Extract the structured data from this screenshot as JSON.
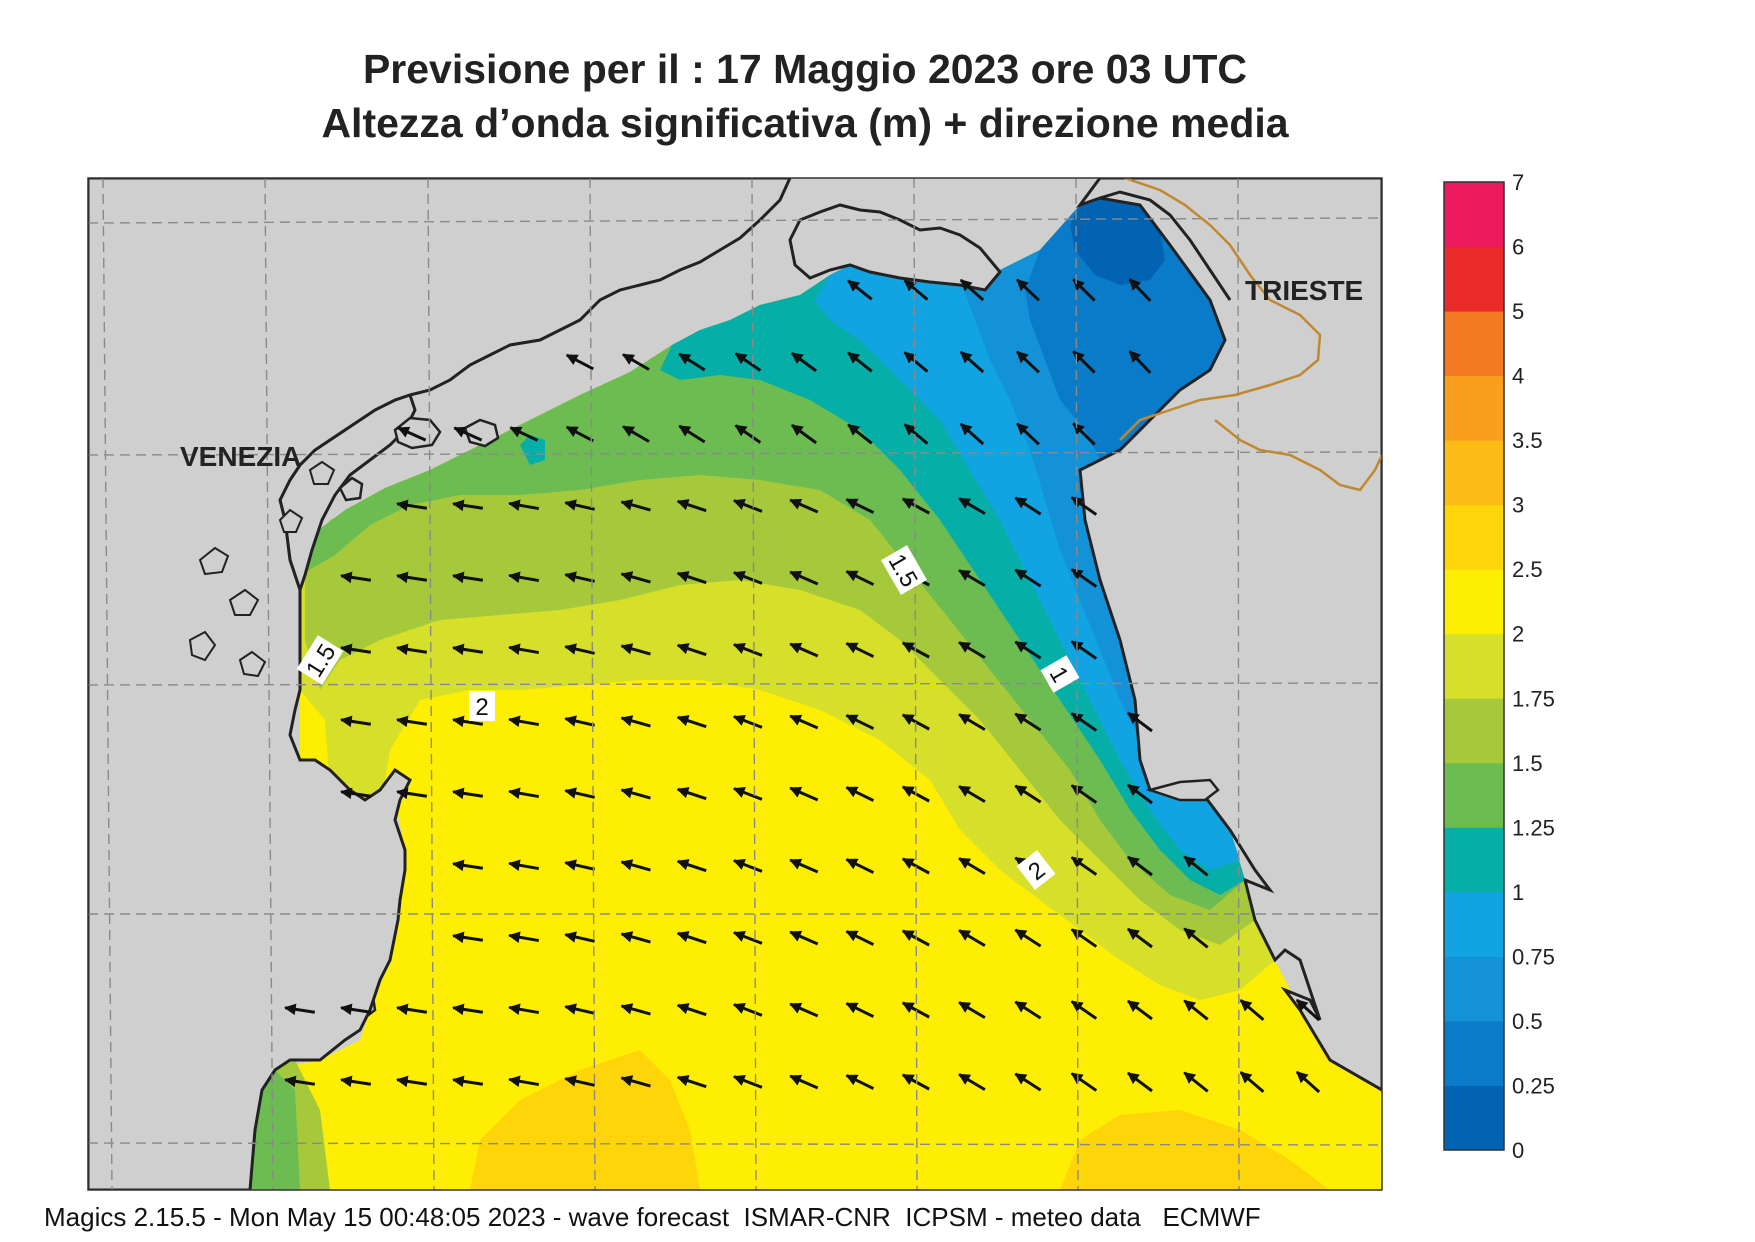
{
  "title": {
    "line1": "Previsione per il  :  17   Maggio  2023   ore 03 UTC",
    "line2": "Altezza d’onda significativa (m) + direzione media"
  },
  "places": [
    {
      "name": "VENEZIA"
    },
    {
      "name": "TRIESTE"
    }
  ],
  "contour_labels": [
    "1.5",
    "2",
    "1.5",
    "1",
    "2"
  ],
  "legend": {
    "levels": [
      "0",
      "0.25",
      "0.5",
      "0.75",
      "1",
      "1.25",
      "1.5",
      "1.75",
      "2",
      "2.5",
      "3",
      "3.5",
      "4",
      "5",
      "6",
      "7"
    ],
    "colors": [
      "#0263b3",
      "#0a7bc9",
      "#1492d8",
      "#12a3e2",
      "#06aea8",
      "#6cbc52",
      "#a6c93b",
      "#d6df2a",
      "#fdee03",
      "#fdd508",
      "#fcbb17",
      "#fa9e1e",
      "#f37a22",
      "#ea2b2a",
      "#ee1a60"
    ]
  },
  "colors": {
    "land": "#cfcfcf",
    "coast": "#222222",
    "border": "#c08830",
    "grid": "#8a8a8a"
  },
  "footer": "Magics 2.15.5 - Mon May 15 00:48:05 2023 - wave forecast  ISMAR-CNR  ICPSM - meteo data   ECMWF"
}
